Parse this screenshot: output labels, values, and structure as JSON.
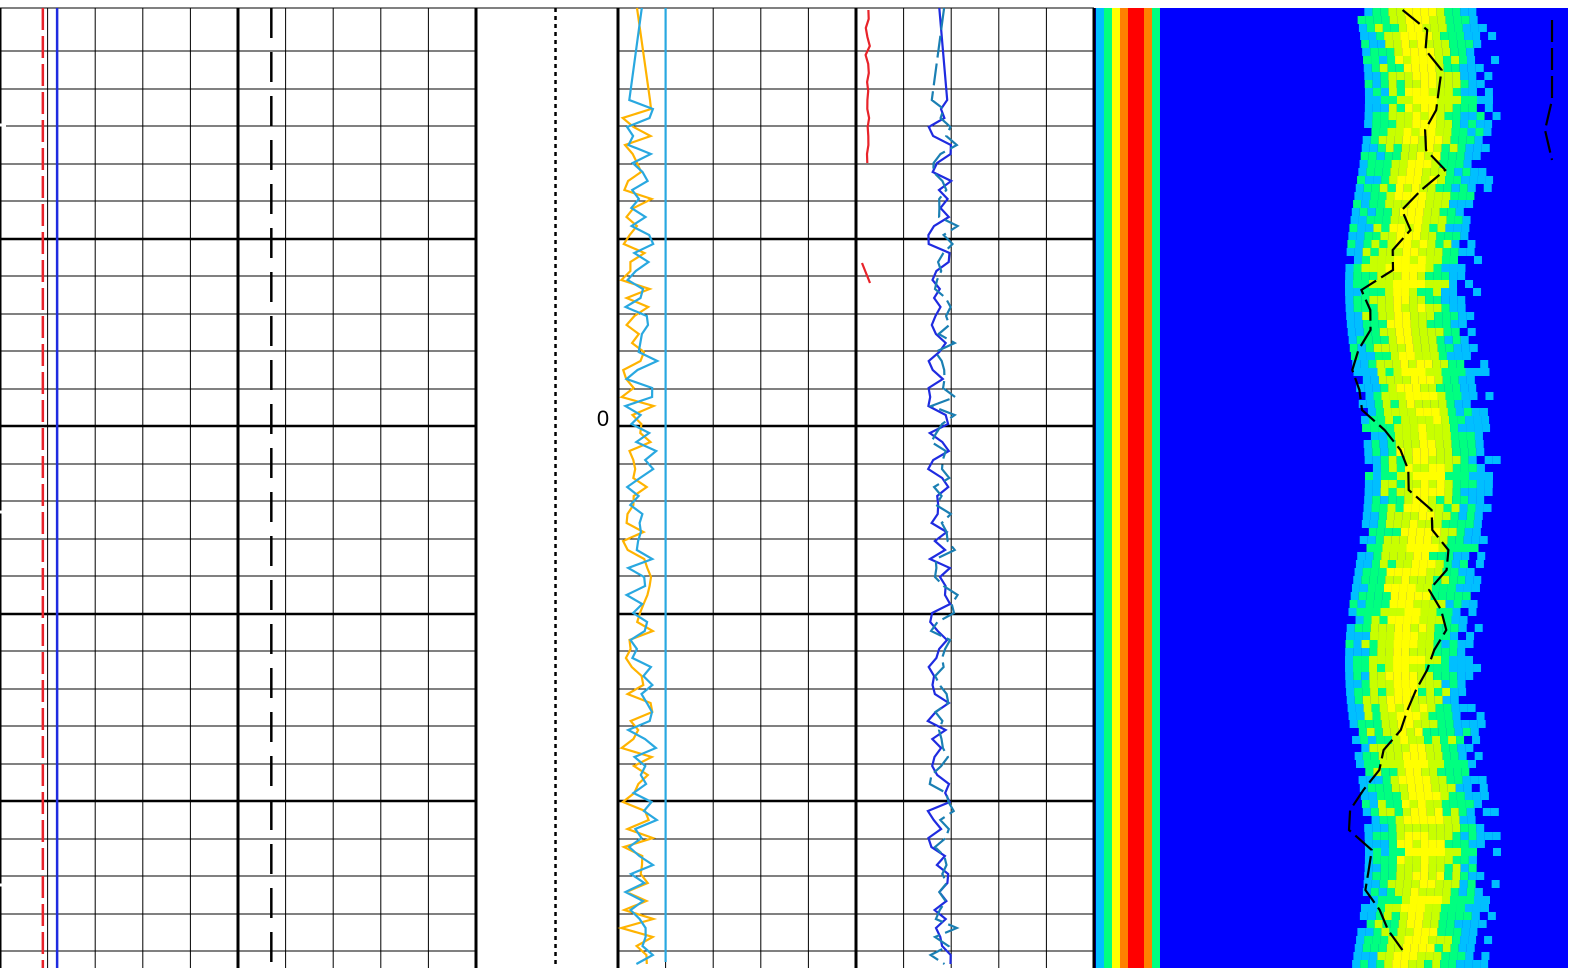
{
  "chart_data": {
    "type": "line",
    "title": "",
    "depth_label": "0",
    "tracks": [
      {
        "name": "track-1",
        "grid": true,
        "curves": [
          {
            "color": "#e8232a",
            "style": "dash",
            "x": 0.09
          },
          {
            "color": "#1f2be0",
            "style": "solid",
            "x": 0.12
          },
          {
            "color": "#000000",
            "style": "longdash",
            "x": 0.57
          }
        ]
      },
      {
        "name": "track-2",
        "grid": false,
        "curves": [
          {
            "color": "#000000",
            "style": "dot",
            "x": 0.56
          }
        ]
      },
      {
        "name": "track-3",
        "grid": true,
        "curves": [
          {
            "color": "#ffb300",
            "style": "solid",
            "x": 0.08,
            "amp": 0.07
          },
          {
            "color": "#29a8e0",
            "style": "solid",
            "x": 0.1,
            "amp": 0.07
          },
          {
            "color": "#29a8e0",
            "style": "solid",
            "x": 0.2,
            "amp": 0.0
          },
          {
            "color": "#e8232a",
            "style": "solid",
            "x": 1.05,
            "amp": 0.01
          },
          {
            "color": "#1f2be0",
            "style": "solid",
            "x": 1.35,
            "amp": 0.05
          },
          {
            "color": "#1a7fb3",
            "style": "dash",
            "x": 1.37,
            "amp": 0.06
          }
        ]
      },
      {
        "name": "track-4",
        "grid": false,
        "type": "heatmap",
        "colormap": [
          "#0000ff",
          "#00bfff",
          "#00ff80",
          "#c8ff00",
          "#ffff00",
          "#ff8000",
          "#ff0000"
        ],
        "overlay_curve": {
          "color": "#000000",
          "style": "dash"
        }
      }
    ]
  }
}
